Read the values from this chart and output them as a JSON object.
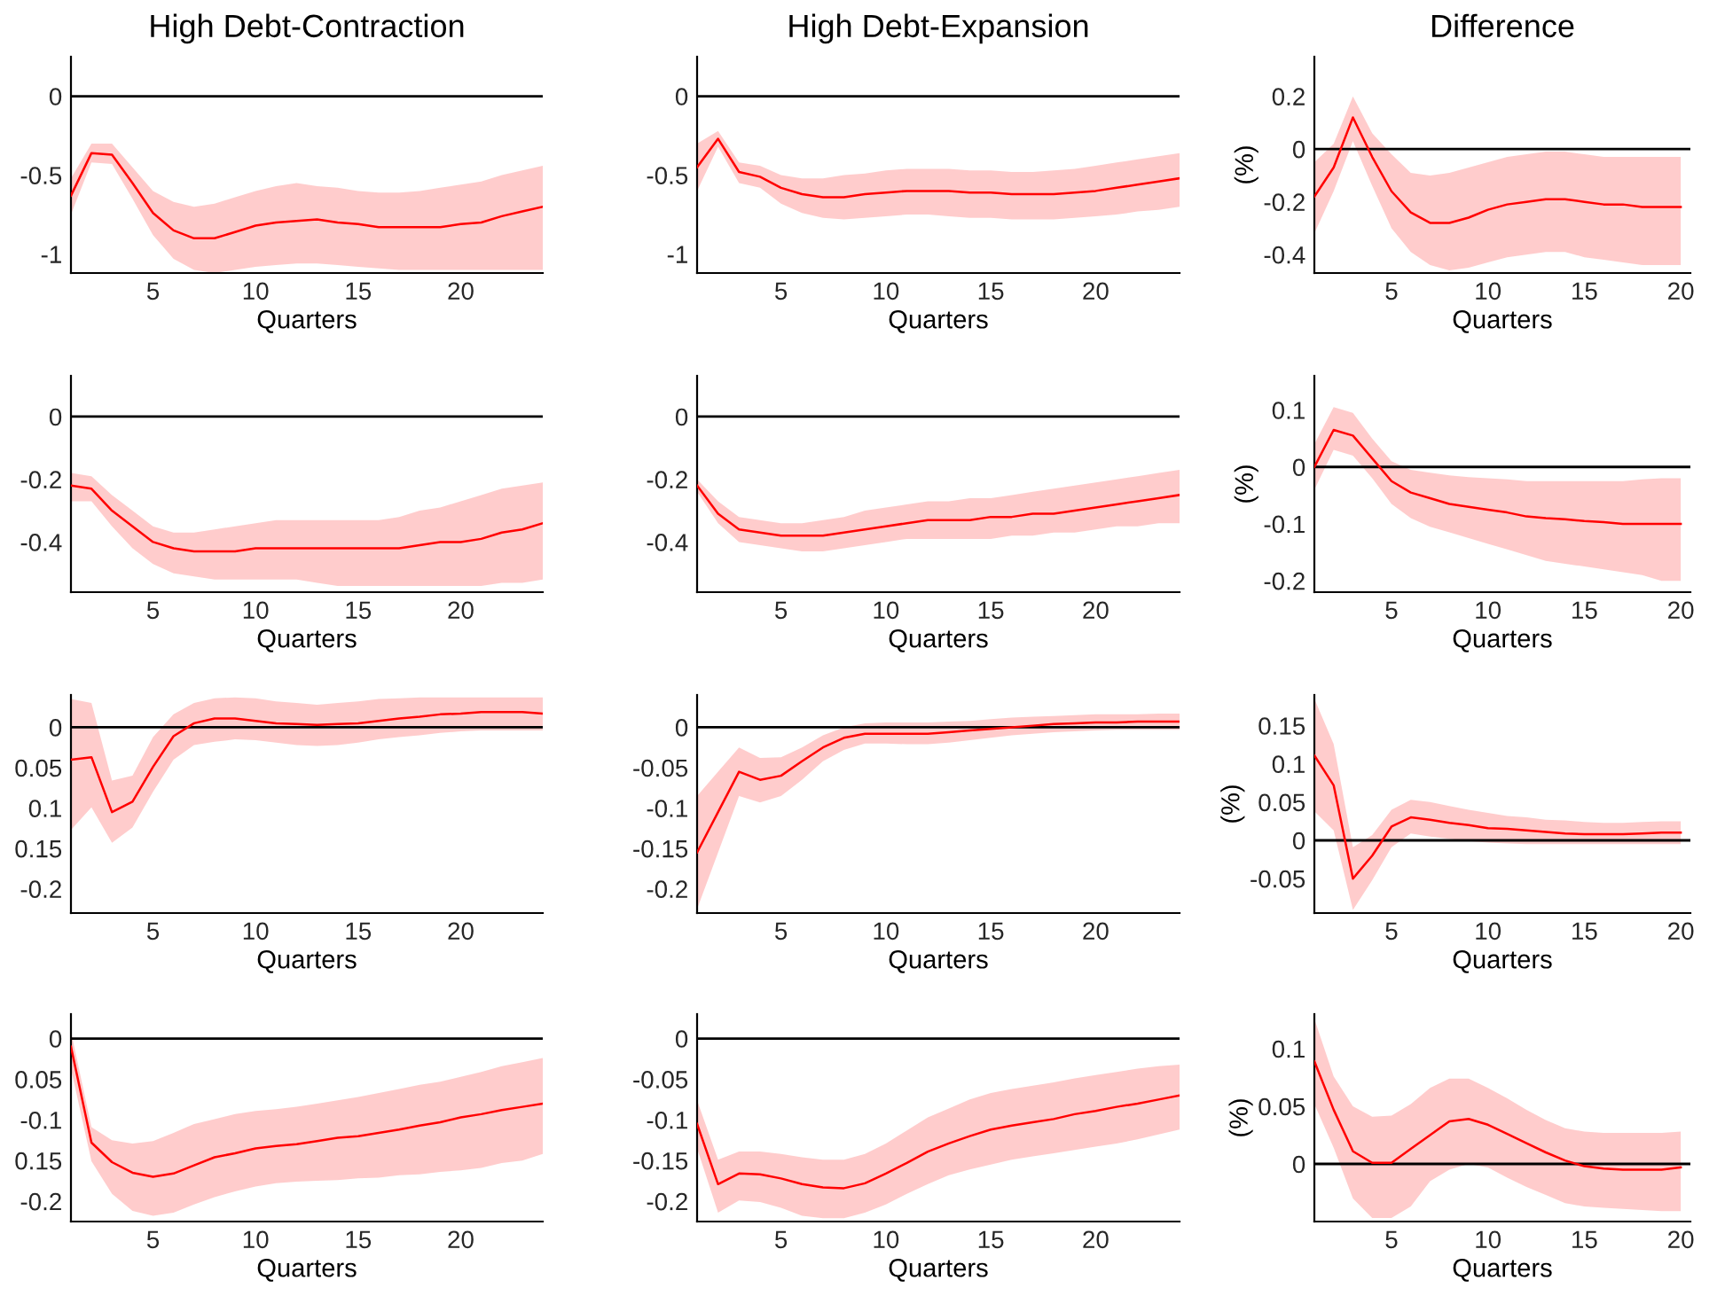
{
  "chart_data": [
    {
      "type": "line",
      "title": "High Debt-Contraction",
      "xlabel": "Quarters",
      "x": [
        1,
        2,
        3,
        4,
        5,
        6,
        7,
        8,
        9,
        10,
        11,
        12,
        13,
        14,
        15,
        16,
        17,
        18,
        19,
        20,
        21,
        22,
        23,
        24
      ],
      "xlim": [
        1,
        24
      ],
      "ylim": [
        -1.12,
        0.25
      ],
      "xticks": [
        5,
        10,
        15,
        20
      ],
      "yticks": [
        -1,
        -0.5,
        0
      ],
      "ref_lines": [
        {
          "axis": "y",
          "value": 0,
          "color": "#000000"
        }
      ],
      "series": [
        {
          "color": "#ff0000",
          "values": [
            -0.63,
            -0.36,
            -0.37,
            -0.55,
            -0.74,
            -0.85,
            -0.9,
            -0.9,
            -0.86,
            -0.82,
            -0.8,
            -0.79,
            -0.78,
            -0.8,
            -0.81,
            -0.83,
            -0.83,
            -0.83,
            -0.83,
            -0.81,
            -0.8,
            -0.76,
            -0.73,
            -0.7
          ],
          "upper": [
            -0.52,
            -0.3,
            -0.3,
            -0.45,
            -0.6,
            -0.67,
            -0.7,
            -0.68,
            -0.64,
            -0.6,
            -0.57,
            -0.55,
            -0.57,
            -0.58,
            -0.6,
            -0.61,
            -0.61,
            -0.6,
            -0.58,
            -0.56,
            -0.54,
            -0.5,
            -0.47,
            -0.44
          ],
          "lower": [
            -0.75,
            -0.42,
            -0.43,
            -0.65,
            -0.88,
            -1.03,
            -1.1,
            -1.12,
            -1.1,
            -1.08,
            -1.07,
            -1.06,
            -1.06,
            -1.07,
            -1.08,
            -1.09,
            -1.1,
            -1.1,
            -1.1,
            -1.1,
            -1.1,
            -1.1,
            -1.1,
            -1.1
          ]
        }
      ]
    },
    {
      "type": "line",
      "title": "High Debt-Expansion",
      "xlabel": "Quarters",
      "x": [
        1,
        2,
        3,
        4,
        5,
        6,
        7,
        8,
        9,
        10,
        11,
        12,
        13,
        14,
        15,
        16,
        17,
        18,
        19,
        20,
        21,
        22,
        23,
        24
      ],
      "xlim": [
        1,
        24
      ],
      "ylim": [
        -1.12,
        0.25
      ],
      "xticks": [
        5,
        10,
        15,
        20
      ],
      "yticks": [
        -1,
        -0.5,
        0
      ],
      "ref_lines": [
        {
          "axis": "y",
          "value": 0,
          "color": "#000000"
        }
      ],
      "series": [
        {
          "color": "#ff0000",
          "values": [
            -0.45,
            -0.27,
            -0.48,
            -0.51,
            -0.58,
            -0.62,
            -0.64,
            -0.64,
            -0.62,
            -0.61,
            -0.6,
            -0.6,
            -0.6,
            -0.61,
            -0.61,
            -0.62,
            -0.62,
            -0.62,
            -0.61,
            -0.6,
            -0.58,
            -0.56,
            -0.54,
            -0.52
          ],
          "upper": [
            -0.3,
            -0.22,
            -0.42,
            -0.44,
            -0.5,
            -0.52,
            -0.52,
            -0.5,
            -0.49,
            -0.47,
            -0.46,
            -0.46,
            -0.46,
            -0.47,
            -0.47,
            -0.48,
            -0.48,
            -0.47,
            -0.46,
            -0.44,
            -0.42,
            -0.4,
            -0.38,
            -0.36
          ],
          "lower": [
            -0.6,
            -0.32,
            -0.55,
            -0.58,
            -0.68,
            -0.74,
            -0.77,
            -0.78,
            -0.77,
            -0.76,
            -0.75,
            -0.75,
            -0.76,
            -0.77,
            -0.77,
            -0.78,
            -0.78,
            -0.78,
            -0.77,
            -0.76,
            -0.75,
            -0.73,
            -0.72,
            -0.7
          ]
        }
      ]
    },
    {
      "type": "line",
      "title": "Difference",
      "xlabel": "Quarters",
      "ylabel": "(%)",
      "x": [
        1,
        2,
        3,
        4,
        5,
        6,
        7,
        8,
        9,
        10,
        11,
        12,
        13,
        14,
        15,
        16,
        17,
        18,
        19,
        20
      ],
      "xlim": [
        1,
        20.5
      ],
      "ylim": [
        -0.47,
        0.35
      ],
      "xticks": [
        5,
        10,
        15,
        20
      ],
      "yticks": [
        -0.4,
        -0.2,
        0,
        0.2
      ],
      "ref_lines": [
        {
          "axis": "y",
          "value": 0,
          "color": "#000000"
        }
      ],
      "series": [
        {
          "color": "#ff0000",
          "values": [
            -0.18,
            -0.07,
            0.12,
            -0.03,
            -0.16,
            -0.24,
            -0.28,
            -0.28,
            -0.26,
            -0.23,
            -0.21,
            -0.2,
            -0.19,
            -0.19,
            -0.2,
            -0.21,
            -0.21,
            -0.22,
            -0.22,
            -0.22
          ],
          "upper": [
            -0.05,
            0.02,
            0.2,
            0.06,
            -0.02,
            -0.09,
            -0.1,
            -0.09,
            -0.07,
            -0.05,
            -0.03,
            -0.02,
            -0.01,
            -0.01,
            -0.02,
            -0.03,
            -0.03,
            -0.03,
            -0.03,
            -0.03
          ],
          "lower": [
            -0.32,
            -0.16,
            0.03,
            -0.14,
            -0.3,
            -0.39,
            -0.44,
            -0.46,
            -0.45,
            -0.43,
            -0.41,
            -0.4,
            -0.39,
            -0.39,
            -0.41,
            -0.42,
            -0.43,
            -0.44,
            -0.44,
            -0.44
          ]
        }
      ]
    },
    {
      "type": "line",
      "xlabel": "Quarters",
      "x": [
        1,
        2,
        3,
        4,
        5,
        6,
        7,
        8,
        9,
        10,
        11,
        12,
        13,
        14,
        15,
        16,
        17,
        18,
        19,
        20,
        21,
        22,
        23,
        24
      ],
      "xlim": [
        1,
        24
      ],
      "ylim": [
        -0.56,
        0.13
      ],
      "xticks": [
        5,
        10,
        15,
        20
      ],
      "yticks": [
        -0.4,
        -0.2,
        0
      ],
      "ref_lines": [
        {
          "axis": "y",
          "value": 0,
          "color": "#000000"
        }
      ],
      "series": [
        {
          "color": "#ff0000",
          "values": [
            -0.22,
            -0.23,
            -0.3,
            -0.35,
            -0.4,
            -0.42,
            -0.43,
            -0.43,
            -0.43,
            -0.42,
            -0.42,
            -0.42,
            -0.42,
            -0.42,
            -0.42,
            -0.42,
            -0.42,
            -0.41,
            -0.4,
            -0.4,
            -0.39,
            -0.37,
            -0.36,
            -0.34
          ],
          "upper": [
            -0.18,
            -0.19,
            -0.25,
            -0.3,
            -0.35,
            -0.37,
            -0.37,
            -0.36,
            -0.35,
            -0.34,
            -0.33,
            -0.33,
            -0.33,
            -0.33,
            -0.33,
            -0.33,
            -0.32,
            -0.3,
            -0.29,
            -0.27,
            -0.25,
            -0.23,
            -0.22,
            -0.21
          ],
          "lower": [
            -0.27,
            -0.27,
            -0.35,
            -0.42,
            -0.47,
            -0.5,
            -0.51,
            -0.52,
            -0.52,
            -0.52,
            -0.52,
            -0.52,
            -0.53,
            -0.54,
            -0.54,
            -0.54,
            -0.54,
            -0.54,
            -0.54,
            -0.54,
            -0.54,
            -0.53,
            -0.53,
            -0.52
          ]
        }
      ]
    },
    {
      "type": "line",
      "xlabel": "Quarters",
      "x": [
        1,
        2,
        3,
        4,
        5,
        6,
        7,
        8,
        9,
        10,
        11,
        12,
        13,
        14,
        15,
        16,
        17,
        18,
        19,
        20,
        21,
        22,
        23,
        24
      ],
      "xlim": [
        1,
        24
      ],
      "ylim": [
        -0.56,
        0.13
      ],
      "xticks": [
        5,
        10,
        15,
        20
      ],
      "yticks": [
        -0.4,
        -0.2,
        0
      ],
      "ref_lines": [
        {
          "axis": "y",
          "value": 0,
          "color": "#000000"
        }
      ],
      "series": [
        {
          "color": "#ff0000",
          "values": [
            -0.22,
            -0.31,
            -0.36,
            -0.37,
            -0.38,
            -0.38,
            -0.38,
            -0.37,
            -0.36,
            -0.35,
            -0.34,
            -0.33,
            -0.33,
            -0.33,
            -0.32,
            -0.32,
            -0.31,
            -0.31,
            -0.3,
            -0.29,
            -0.28,
            -0.27,
            -0.26,
            -0.25
          ],
          "upper": [
            -0.2,
            -0.27,
            -0.32,
            -0.33,
            -0.34,
            -0.34,
            -0.33,
            -0.32,
            -0.3,
            -0.29,
            -0.28,
            -0.27,
            -0.27,
            -0.26,
            -0.26,
            -0.25,
            -0.24,
            -0.23,
            -0.22,
            -0.21,
            -0.2,
            -0.19,
            -0.18,
            -0.17
          ],
          "lower": [
            -0.24,
            -0.34,
            -0.4,
            -0.41,
            -0.42,
            -0.43,
            -0.43,
            -0.42,
            -0.41,
            -0.4,
            -0.39,
            -0.39,
            -0.39,
            -0.39,
            -0.39,
            -0.38,
            -0.38,
            -0.37,
            -0.37,
            -0.36,
            -0.35,
            -0.35,
            -0.34,
            -0.34
          ]
        }
      ]
    },
    {
      "type": "line",
      "xlabel": "Quarters",
      "ylabel": "(%)",
      "x": [
        1,
        2,
        3,
        4,
        5,
        6,
        7,
        8,
        9,
        10,
        11,
        12,
        13,
        14,
        15,
        16,
        17,
        18,
        19,
        20
      ],
      "xlim": [
        1,
        20.5
      ],
      "ylim": [
        -0.22,
        0.16
      ],
      "xticks": [
        5,
        10,
        15,
        20
      ],
      "yticks": [
        -0.2,
        -0.1,
        0,
        0.1
      ],
      "ref_lines": [
        {
          "axis": "y",
          "value": 0,
          "color": "#000000"
        }
      ],
      "series": [
        {
          "color": "#ff0000",
          "values": [
            0.0,
            0.065,
            0.055,
            0.015,
            -0.025,
            -0.045,
            -0.055,
            -0.065,
            -0.07,
            -0.075,
            -0.08,
            -0.087,
            -0.09,
            -0.092,
            -0.095,
            -0.097,
            -0.1,
            -0.1,
            -0.1,
            -0.1
          ],
          "upper": [
            0.04,
            0.105,
            0.095,
            0.05,
            0.01,
            -0.005,
            -0.01,
            -0.015,
            -0.018,
            -0.02,
            -0.022,
            -0.025,
            -0.025,
            -0.025,
            -0.025,
            -0.025,
            -0.025,
            -0.022,
            -0.02,
            -0.02
          ],
          "lower": [
            -0.04,
            0.03,
            0.02,
            -0.02,
            -0.065,
            -0.09,
            -0.105,
            -0.115,
            -0.125,
            -0.135,
            -0.145,
            -0.155,
            -0.165,
            -0.17,
            -0.175,
            -0.18,
            -0.185,
            -0.19,
            -0.2,
            -0.2
          ]
        }
      ]
    },
    {
      "type": "line",
      "xlabel": "Quarters",
      "x": [
        1,
        2,
        3,
        4,
        5,
        6,
        7,
        8,
        9,
        10,
        11,
        12,
        13,
        14,
        15,
        16,
        17,
        18,
        19,
        20,
        21,
        22,
        23,
        24
      ],
      "xlim": [
        1,
        24
      ],
      "ylim": [
        -0.23,
        0.04
      ],
      "xticks": [
        5,
        10,
        15,
        20
      ],
      "yticks": [
        {
          "value": -0.2,
          "label": "-0.2"
        },
        {
          "value": -0.15,
          "label": "0.15"
        },
        {
          "value": -0.1,
          "label": "0.1"
        },
        {
          "value": -0.05,
          "label": "0.05"
        },
        0
      ],
      "ref_lines": [
        {
          "axis": "y",
          "value": 0,
          "color": "#000000"
        }
      ],
      "series": [
        {
          "color": "#ff0000",
          "values": [
            -0.04,
            -0.037,
            -0.105,
            -0.092,
            -0.049,
            -0.011,
            0.005,
            0.011,
            0.011,
            0.008,
            0.005,
            0.004,
            0.003,
            0.004,
            0.005,
            0.008,
            0.011,
            0.013,
            0.016,
            0.017,
            0.019,
            0.019,
            0.019,
            0.017
          ],
          "upper": [
            0.035,
            0.03,
            -0.066,
            -0.06,
            -0.012,
            0.016,
            0.03,
            0.036,
            0.037,
            0.036,
            0.032,
            0.03,
            0.028,
            0.03,
            0.032,
            0.035,
            0.036,
            0.037,
            0.037,
            0.037,
            0.037,
            0.037,
            0.037,
            0.037
          ],
          "lower": [
            -0.127,
            -0.099,
            -0.143,
            -0.124,
            -0.08,
            -0.04,
            -0.022,
            -0.018,
            -0.015,
            -0.016,
            -0.019,
            -0.022,
            -0.023,
            -0.022,
            -0.019,
            -0.015,
            -0.012,
            -0.01,
            -0.007,
            -0.005,
            -0.004,
            -0.004,
            -0.004,
            -0.004
          ]
        }
      ]
    },
    {
      "type": "line",
      "xlabel": "Quarters",
      "x": [
        1,
        2,
        3,
        4,
        5,
        6,
        7,
        8,
        9,
        10,
        11,
        12,
        13,
        14,
        15,
        16,
        17,
        18,
        19,
        20,
        21,
        22,
        23,
        24
      ],
      "xlim": [
        1,
        24
      ],
      "ylim": [
        -0.23,
        0.04
      ],
      "xticks": [
        5,
        10,
        15,
        20
      ],
      "yticks": [
        -0.2,
        -0.15,
        -0.1,
        -0.05,
        0
      ],
      "ref_lines": [
        {
          "axis": "y",
          "value": 0,
          "color": "#000000"
        }
      ],
      "series": [
        {
          "color": "#ff0000",
          "values": [
            -0.155,
            -0.105,
            -0.055,
            -0.065,
            -0.06,
            -0.042,
            -0.025,
            -0.013,
            -0.008,
            -0.008,
            -0.008,
            -0.008,
            -0.006,
            -0.004,
            -0.002,
            0.0,
            0.002,
            0.004,
            0.005,
            0.006,
            0.006,
            0.007,
            0.007,
            0.007
          ],
          "upper": [
            -0.085,
            -0.055,
            -0.025,
            -0.038,
            -0.037,
            -0.025,
            -0.01,
            0.0,
            0.005,
            0.006,
            0.006,
            0.006,
            0.007,
            0.008,
            0.01,
            0.012,
            0.013,
            0.014,
            0.015,
            0.016,
            0.016,
            0.016,
            0.017,
            0.017
          ],
          "lower": [
            -0.225,
            -0.155,
            -0.085,
            -0.093,
            -0.085,
            -0.065,
            -0.042,
            -0.028,
            -0.02,
            -0.02,
            -0.021,
            -0.021,
            -0.019,
            -0.016,
            -0.013,
            -0.01,
            -0.008,
            -0.006,
            -0.005,
            -0.004,
            -0.003,
            -0.003,
            -0.003,
            -0.003
          ]
        }
      ]
    },
    {
      "type": "line",
      "xlabel": "Quarters",
      "ylabel": "(%)",
      "x": [
        1,
        2,
        3,
        4,
        5,
        6,
        7,
        8,
        9,
        10,
        11,
        12,
        13,
        14,
        15,
        16,
        17,
        18,
        19,
        20
      ],
      "xlim": [
        1,
        20.5
      ],
      "ylim": [
        -0.095,
        0.19
      ],
      "xticks": [
        5,
        10,
        15,
        20
      ],
      "yticks": [
        -0.05,
        0,
        0.05,
        0.1,
        0.15
      ],
      "ref_lines": [
        {
          "axis": "y",
          "value": 0,
          "color": "#000000"
        }
      ],
      "series": [
        {
          "color": "#ff0000",
          "values": [
            0.111,
            0.072,
            -0.05,
            -0.02,
            0.018,
            0.03,
            0.027,
            0.023,
            0.02,
            0.016,
            0.015,
            0.013,
            0.011,
            0.009,
            0.008,
            0.008,
            0.008,
            0.009,
            0.01,
            0.01
          ],
          "upper": [
            0.185,
            0.126,
            -0.009,
            0.007,
            0.04,
            0.053,
            0.05,
            0.045,
            0.04,
            0.036,
            0.032,
            0.03,
            0.027,
            0.026,
            0.024,
            0.023,
            0.023,
            0.024,
            0.025,
            0.025
          ],
          "lower": [
            0.038,
            0.013,
            -0.091,
            -0.052,
            -0.009,
            0.009,
            0.005,
            0.002,
            -0.001,
            -0.003,
            -0.004,
            -0.005,
            -0.005,
            -0.005,
            -0.005,
            -0.005,
            -0.005,
            -0.005,
            -0.005,
            -0.005
          ]
        }
      ]
    },
    {
      "type": "line",
      "xlabel": "Quarters",
      "x": [
        1,
        2,
        3,
        4,
        5,
        6,
        7,
        8,
        9,
        10,
        11,
        12,
        13,
        14,
        15,
        16,
        17,
        18,
        19,
        20,
        21,
        22,
        23,
        24
      ],
      "xlim": [
        1,
        24
      ],
      "ylim": [
        -0.225,
        0.03
      ],
      "xticks": [
        5,
        10,
        15,
        20
      ],
      "yticks": [
        {
          "value": -0.2,
          "label": "-0.2"
        },
        {
          "value": -0.15,
          "label": "0.15"
        },
        {
          "value": -0.1,
          "label": "-0.1"
        },
        {
          "value": -0.05,
          "label": "0.05"
        },
        0
      ],
      "ref_lines": [
        {
          "axis": "y",
          "value": 0,
          "color": "#000000"
        }
      ],
      "series": [
        {
          "color": "#ff0000",
          "values": [
            -0.01,
            -0.128,
            -0.152,
            -0.165,
            -0.17,
            -0.166,
            -0.156,
            -0.146,
            -0.141,
            -0.135,
            -0.132,
            -0.13,
            -0.126,
            -0.122,
            -0.12,
            -0.116,
            -0.112,
            -0.107,
            -0.103,
            -0.097,
            -0.093,
            -0.088,
            -0.084,
            -0.08
          ],
          "upper": [
            0.009,
            -0.109,
            -0.125,
            -0.129,
            -0.126,
            -0.116,
            -0.105,
            -0.099,
            -0.093,
            -0.089,
            -0.087,
            -0.084,
            -0.08,
            -0.076,
            -0.072,
            -0.067,
            -0.062,
            -0.057,
            -0.053,
            -0.047,
            -0.041,
            -0.034,
            -0.029,
            -0.024
          ],
          "lower": [
            -0.037,
            -0.151,
            -0.191,
            -0.212,
            -0.218,
            -0.214,
            -0.204,
            -0.195,
            -0.188,
            -0.182,
            -0.178,
            -0.176,
            -0.175,
            -0.174,
            -0.172,
            -0.171,
            -0.168,
            -0.167,
            -0.164,
            -0.162,
            -0.159,
            -0.153,
            -0.15,
            -0.142
          ]
        }
      ]
    },
    {
      "type": "line",
      "xlabel": "Quarters",
      "x": [
        1,
        2,
        3,
        4,
        5,
        6,
        7,
        8,
        9,
        10,
        11,
        12,
        13,
        14,
        15,
        16,
        17,
        18,
        19,
        20,
        21,
        22,
        23,
        24
      ],
      "xlim": [
        1,
        24
      ],
      "ylim": [
        -0.225,
        0.03
      ],
      "xticks": [
        5,
        10,
        15,
        20
      ],
      "yticks": [
        -0.2,
        -0.15,
        -0.1,
        -0.05,
        0
      ],
      "ref_lines": [
        {
          "axis": "y",
          "value": 0,
          "color": "#000000"
        }
      ],
      "series": [
        {
          "color": "#ff0000",
          "values": [
            -0.105,
            -0.179,
            -0.166,
            -0.167,
            -0.172,
            -0.179,
            -0.183,
            -0.184,
            -0.178,
            -0.166,
            -0.153,
            -0.139,
            -0.129,
            -0.12,
            -0.112,
            -0.107,
            -0.103,
            -0.099,
            -0.093,
            -0.089,
            -0.084,
            -0.08,
            -0.075,
            -0.07
          ],
          "upper": [
            -0.076,
            -0.149,
            -0.139,
            -0.139,
            -0.142,
            -0.146,
            -0.149,
            -0.149,
            -0.142,
            -0.129,
            -0.113,
            -0.097,
            -0.086,
            -0.075,
            -0.067,
            -0.062,
            -0.058,
            -0.054,
            -0.049,
            -0.045,
            -0.041,
            -0.037,
            -0.034,
            -0.032
          ],
          "lower": [
            -0.135,
            -0.214,
            -0.199,
            -0.201,
            -0.208,
            -0.218,
            -0.221,
            -0.221,
            -0.214,
            -0.204,
            -0.191,
            -0.179,
            -0.168,
            -0.161,
            -0.155,
            -0.149,
            -0.145,
            -0.141,
            -0.137,
            -0.133,
            -0.129,
            -0.124,
            -0.118,
            -0.112
          ]
        }
      ]
    },
    {
      "type": "line",
      "xlabel": "Quarters",
      "ylabel": "(%)",
      "x": [
        1,
        2,
        3,
        4,
        5,
        6,
        7,
        8,
        9,
        10,
        11,
        12,
        13,
        14,
        15,
        16,
        17,
        18,
        19,
        20
      ],
      "xlim": [
        1,
        20.5
      ],
      "ylim": [
        -0.05,
        0.13
      ],
      "xticks": [
        5,
        10,
        15,
        20
      ],
      "yticks": [
        0,
        0.05,
        0.1
      ],
      "ref_lines": [
        {
          "axis": "y",
          "value": 0,
          "color": "#000000"
        }
      ],
      "series": [
        {
          "color": "#ff0000",
          "values": [
            0.089,
            0.047,
            0.011,
            0.001,
            0.001,
            0.013,
            0.025,
            0.037,
            0.039,
            0.034,
            0.026,
            0.018,
            0.01,
            0.003,
            -0.002,
            -0.004,
            -0.005,
            -0.005,
            -0.005,
            -0.003
          ],
          "upper": [
            0.126,
            0.076,
            0.05,
            0.041,
            0.042,
            0.052,
            0.066,
            0.074,
            0.074,
            0.066,
            0.057,
            0.047,
            0.038,
            0.031,
            0.028,
            0.027,
            0.027,
            0.027,
            0.027,
            0.028
          ],
          "lower": [
            0.052,
            0.014,
            -0.03,
            -0.047,
            -0.047,
            -0.037,
            -0.015,
            -0.005,
            0.0,
            -0.003,
            -0.012,
            -0.02,
            -0.027,
            -0.034,
            -0.037,
            -0.038,
            -0.039,
            -0.04,
            -0.041,
            -0.041
          ]
        }
      ]
    }
  ]
}
